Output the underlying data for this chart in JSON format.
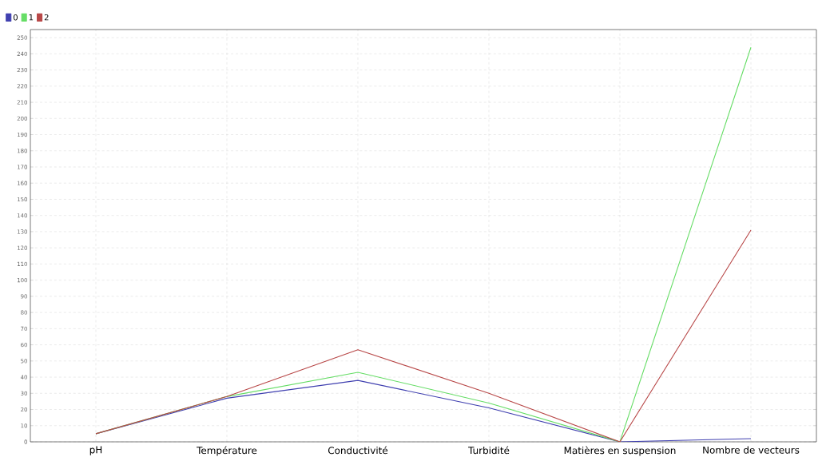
{
  "chart_data": {
    "type": "line",
    "categories": [
      "pH",
      "Température",
      "Conductivité",
      "Turbidité",
      "Matières en suspension",
      "Nombre de vecteurs"
    ],
    "series": [
      {
        "name": "0",
        "color": "#4040b0",
        "values": [
          5,
          27,
          38,
          21,
          0,
          2
        ]
      },
      {
        "name": "1",
        "color": "#66dd66",
        "values": [
          5,
          28,
          43,
          24,
          0,
          244
        ]
      },
      {
        "name": "2",
        "color": "#b84848",
        "values": [
          5,
          28,
          57,
          30,
          0,
          131
        ]
      }
    ],
    "ylim": [
      0,
      255
    ],
    "yticks": [
      0,
      10,
      20,
      30,
      40,
      50,
      60,
      70,
      80,
      90,
      100,
      110,
      120,
      130,
      140,
      150,
      160,
      170,
      180,
      190,
      200,
      210,
      220,
      230,
      240,
      250
    ],
    "grid": true,
    "legend": "top left",
    "marker": "none",
    "line_style": "solid"
  }
}
